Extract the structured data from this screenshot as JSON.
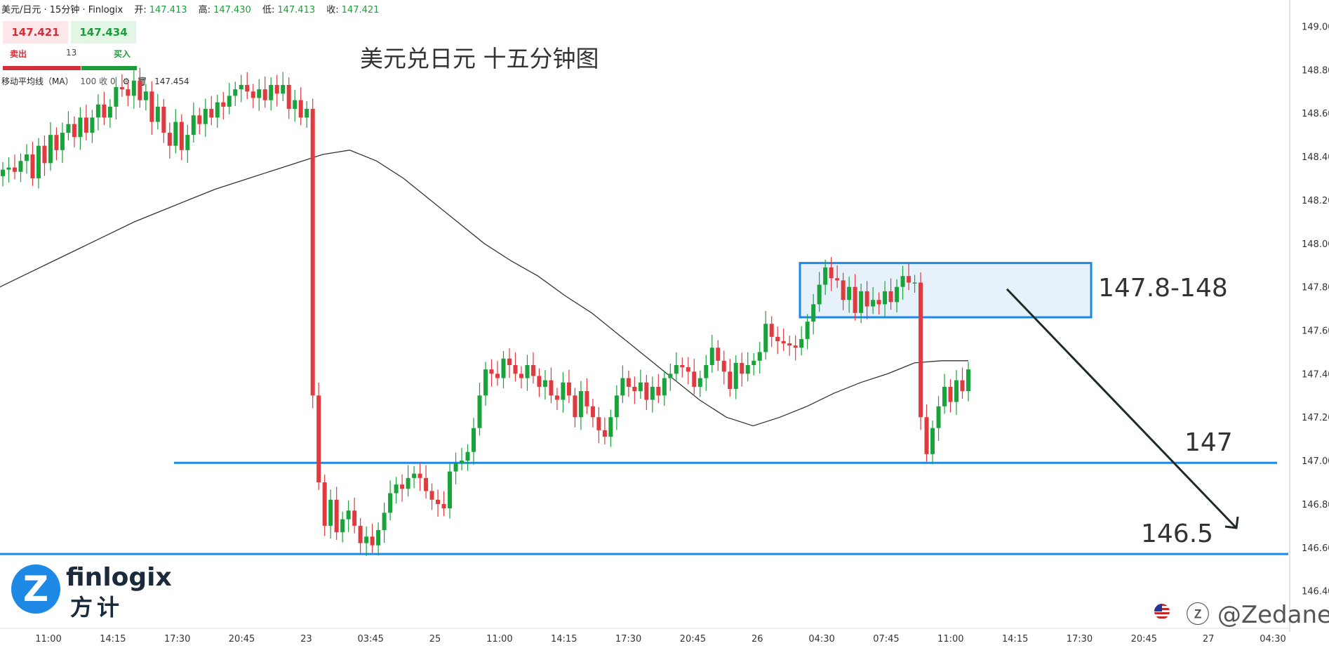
{
  "header": {
    "symbol": "美元/日元 · 15分钟 · Finlogix",
    "open_label": "开:",
    "open": "147.413",
    "high_label": "高:",
    "high": "147.430",
    "low_label": "低:",
    "low": "147.413",
    "close_label": "收:",
    "close": "147.421"
  },
  "quote": {
    "sell_price": "147.421",
    "buy_price": "147.434",
    "sell_label": "卖出",
    "buy_label": "买入",
    "spread": "13"
  },
  "indicator": {
    "label": "移动平均线（MA）",
    "params": "100 收 0",
    "value": "147.454"
  },
  "logo": {
    "name": "finlogix",
    "cn": "方计"
  },
  "watermark": "@Zedane",
  "colors": {
    "up": "#1aa33a",
    "down": "#e03a3e",
    "line": "#1e88e5",
    "zone_fill": "#e6f1fc",
    "ma": "#333333",
    "arrow": "#1f2a24"
  },
  "chart_data": {
    "type": "candlestick",
    "title": "美元兑日元 十五分钟图",
    "y_ticks": [
      "149.000",
      "148.800",
      "148.600",
      "148.400",
      "148.200",
      "148.000",
      "147.800",
      "147.600",
      "147.400",
      "147.200",
      "147.000",
      "146.800",
      "146.600",
      "146.400"
    ],
    "ylim": [
      146.36,
      149.05
    ],
    "x_ticks": [
      "11:00",
      "14:15",
      "17:30",
      "20:45",
      "23",
      "03:45",
      "25",
      "11:00",
      "14:15",
      "17:30",
      "20:45",
      "26",
      "04:30",
      "07:45",
      "11:00",
      "14:15",
      "17:30",
      "20:45",
      "27",
      "04:30"
    ],
    "close_series": [
      148.34,
      148.35,
      148.33,
      148.38,
      148.41,
      148.3,
      148.45,
      148.37,
      148.5,
      148.43,
      148.51,
      148.55,
      148.49,
      148.58,
      148.51,
      148.58,
      148.64,
      148.58,
      148.63,
      148.72,
      148.71,
      148.68,
      148.75,
      148.66,
      148.7,
      148.56,
      148.63,
      148.51,
      148.45,
      148.56,
      148.43,
      148.5,
      148.59,
      148.55,
      148.62,
      148.58,
      148.65,
      148.63,
      148.68,
      148.71,
      148.73,
      148.7,
      148.67,
      148.71,
      148.66,
      148.73,
      148.69,
      148.73,
      148.62,
      148.66,
      148.58,
      148.62,
      147.3,
      146.9,
      146.7,
      146.82,
      146.67,
      146.73,
      146.77,
      146.7,
      146.62,
      146.65,
      146.61,
      146.68,
      146.76,
      146.85,
      146.89,
      146.87,
      146.92,
      146.94,
      146.92,
      146.86,
      146.82,
      146.8,
      146.78,
      146.95,
      146.99,
      147.0,
      147.04,
      147.15,
      147.3,
      147.42,
      147.4,
      147.38,
      147.47,
      147.44,
      147.4,
      147.38,
      147.44,
      147.39,
      147.34,
      147.37,
      147.3,
      147.28,
      147.36,
      147.3,
      147.2,
      147.32,
      147.25,
      147.2,
      147.14,
      147.11,
      147.2,
      147.3,
      147.38,
      147.34,
      147.32,
      147.36,
      147.28,
      147.34,
      147.3,
      147.38,
      147.4,
      147.44,
      147.43,
      147.41,
      147.34,
      147.38,
      147.44,
      147.52,
      147.46,
      147.41,
      147.33,
      147.45,
      147.4,
      147.44,
      147.46,
      147.5,
      147.63,
      147.57,
      147.55,
      147.54,
      147.53,
      147.52,
      147.56,
      147.64,
      147.72,
      147.81,
      147.89,
      147.84,
      147.83,
      147.74,
      147.8,
      147.68,
      147.78,
      147.71,
      147.74,
      147.72,
      147.78,
      147.73,
      147.8,
      147.85,
      147.82,
      147.82,
      147.2,
      147.03,
      147.15,
      147.25,
      147.34,
      147.27,
      147.37,
      147.32,
      147.42
    ],
    "ma100_series": [
      147.8,
      147.86,
      147.92,
      147.98,
      148.04,
      148.1,
      148.15,
      148.2,
      148.25,
      148.29,
      148.33,
      148.37,
      148.41,
      148.43,
      148.38,
      148.3,
      148.2,
      148.1,
      148.0,
      147.92,
      147.85,
      147.76,
      147.68,
      147.58,
      147.48,
      147.38,
      147.28,
      147.2,
      147.16,
      147.2,
      147.25,
      147.31,
      147.36,
      147.4,
      147.45,
      147.46,
      147.46
    ],
    "levels": [
      {
        "label": "147",
        "value": 146.99
      },
      {
        "label": "146.5",
        "value": 146.57
      }
    ],
    "zone": {
      "label": "147.8-148",
      "low": 147.66,
      "high": 147.91
    },
    "forecast_arrow": {
      "from": 147.79,
      "to": 146.69
    }
  }
}
